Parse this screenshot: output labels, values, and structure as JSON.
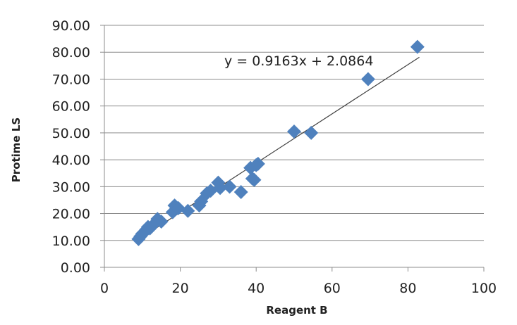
{
  "chart_data": {
    "type": "scatter",
    "title": "",
    "xlabel": "Reagent B",
    "ylabel": "Protime LS",
    "xlim": [
      0,
      100
    ],
    "ylim": [
      0,
      90
    ],
    "x_ticks": [
      "0",
      "20",
      "40",
      "60",
      "80",
      "100"
    ],
    "y_ticks": [
      "0.00",
      "10.00",
      "20.00",
      "30.00",
      "40.00",
      "50.00",
      "60.00",
      "70.00",
      "80.00",
      "90.00"
    ],
    "grid": "horizontal",
    "legend": "none",
    "marker_color": "#4F81BD",
    "trendline_color": "#404040",
    "trendline": {
      "type": "linear",
      "slope": 0.9163,
      "intercept": 2.0864,
      "x_range": [
        9,
        83
      ],
      "equation_label": "y = 0.9163x + 2.0864"
    },
    "points": [
      {
        "x": 9,
        "y": 10.5
      },
      {
        "x": 9.5,
        "y": 11.5
      },
      {
        "x": 10,
        "y": 12.5
      },
      {
        "x": 10.5,
        "y": 13
      },
      {
        "x": 11,
        "y": 14
      },
      {
        "x": 11.5,
        "y": 15
      },
      {
        "x": 12,
        "y": 14.5
      },
      {
        "x": 13,
        "y": 16
      },
      {
        "x": 14,
        "y": 18
      },
      {
        "x": 15,
        "y": 17
      },
      {
        "x": 18,
        "y": 20.5
      },
      {
        "x": 18.5,
        "y": 23
      },
      {
        "x": 19.5,
        "y": 22
      },
      {
        "x": 22,
        "y": 21
      },
      {
        "x": 25,
        "y": 23
      },
      {
        "x": 25.5,
        "y": 24.5
      },
      {
        "x": 27,
        "y": 27.5
      },
      {
        "x": 28,
        "y": 28.5
      },
      {
        "x": 30,
        "y": 31.5
      },
      {
        "x": 30.5,
        "y": 29.5
      },
      {
        "x": 33,
        "y": 30
      },
      {
        "x": 36,
        "y": 28
      },
      {
        "x": 38.5,
        "y": 37
      },
      {
        "x": 39,
        "y": 33
      },
      {
        "x": 39.5,
        "y": 32.5
      },
      {
        "x": 40,
        "y": 38
      },
      {
        "x": 40.5,
        "y": 38.5
      },
      {
        "x": 50,
        "y": 50.5
      },
      {
        "x": 54.5,
        "y": 50
      },
      {
        "x": 69.5,
        "y": 70
      },
      {
        "x": 82.5,
        "y": 82
      }
    ]
  }
}
